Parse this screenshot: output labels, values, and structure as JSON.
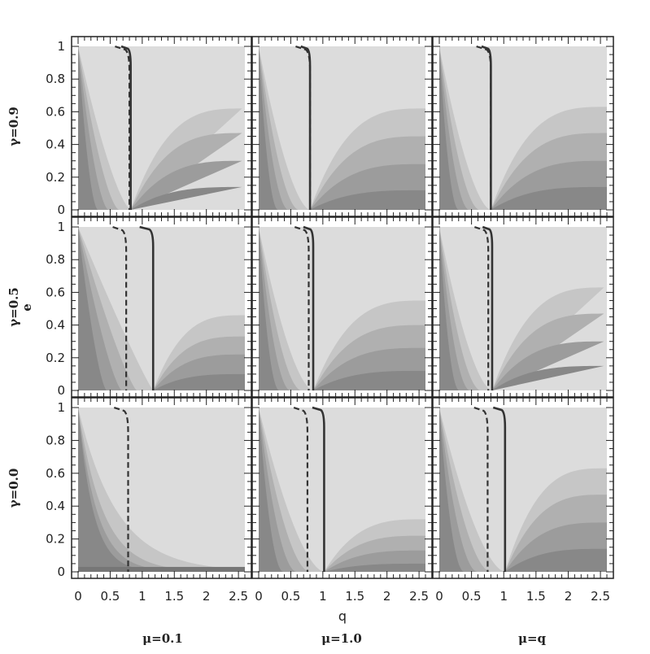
{
  "chart_data": {
    "type": "heatmap",
    "description_layout": "3x3 grid of contour panels",
    "xlabel": "q",
    "ylabel": "e",
    "x_ticks": [
      "0",
      "0.5",
      "1",
      "1.5",
      "2",
      "2.5"
    ],
    "y_ticks": [
      "0",
      "0.2",
      "0.4",
      "0.6",
      "0.8",
      "1"
    ],
    "xlim": [
      0,
      2.6
    ],
    "ylim": [
      0,
      1.02
    ],
    "row_labels": [
      "γ=0.9",
      "γ=0.5",
      "γ=0.0"
    ],
    "column_labels": [
      "μ=0.1",
      "μ=1.0",
      "μ=q"
    ],
    "shade_colors": [
      "#dcdcdc",
      "#c6c6c6",
      "#b0b0b0",
      "#9c9c9c",
      "#888888",
      "#767676"
    ],
    "panels": [
      {
        "row": 0,
        "col": 0,
        "left_k": 2.6,
        "solid_q": 0.82,
        "dashed_q": 0.8,
        "right": [
          0.62,
          0.47,
          0.3,
          0.14
        ]
      },
      {
        "row": 0,
        "col": 1,
        "left_k": 3.0,
        "solid_q": 0.8,
        "dashed_q": 0.8,
        "right": [
          0.62,
          0.45,
          0.28,
          0.12
        ]
      },
      {
        "row": 0,
        "col": 2,
        "left_k": 3.0,
        "solid_q": 0.8,
        "dashed_q": 0.8,
        "right": [
          0.63,
          0.47,
          0.3,
          0.14
        ]
      },
      {
        "row": 1,
        "col": 0,
        "left_k": 2.0,
        "solid_q": 1.17,
        "dashed_q": 0.75,
        "right": [
          0.46,
          0.33,
          0.22,
          0.1
        ]
      },
      {
        "row": 1,
        "col": 1,
        "left_k": 3.0,
        "solid_q": 0.85,
        "dashed_q": 0.78,
        "right": [
          0.55,
          0.4,
          0.26,
          0.12
        ]
      },
      {
        "row": 1,
        "col": 2,
        "left_k": 3.0,
        "solid_q": 0.82,
        "dashed_q": 0.76,
        "right": [
          0.63,
          0.47,
          0.3,
          0.15
        ]
      },
      {
        "row": 2,
        "col": 0,
        "left_k": 0.75,
        "solid_q": null,
        "dashed_q": 0.78,
        "right": null
      },
      {
        "row": 2,
        "col": 1,
        "left_k": 3.0,
        "solid_q": 1.02,
        "dashed_q": 0.76,
        "right": [
          0.32,
          0.22,
          0.13,
          0.05
        ]
      },
      {
        "row": 2,
        "col": 2,
        "left_k": 3.0,
        "solid_q": 1.02,
        "dashed_q": 0.75,
        "right": [
          0.63,
          0.47,
          0.3,
          0.14
        ]
      }
    ]
  }
}
